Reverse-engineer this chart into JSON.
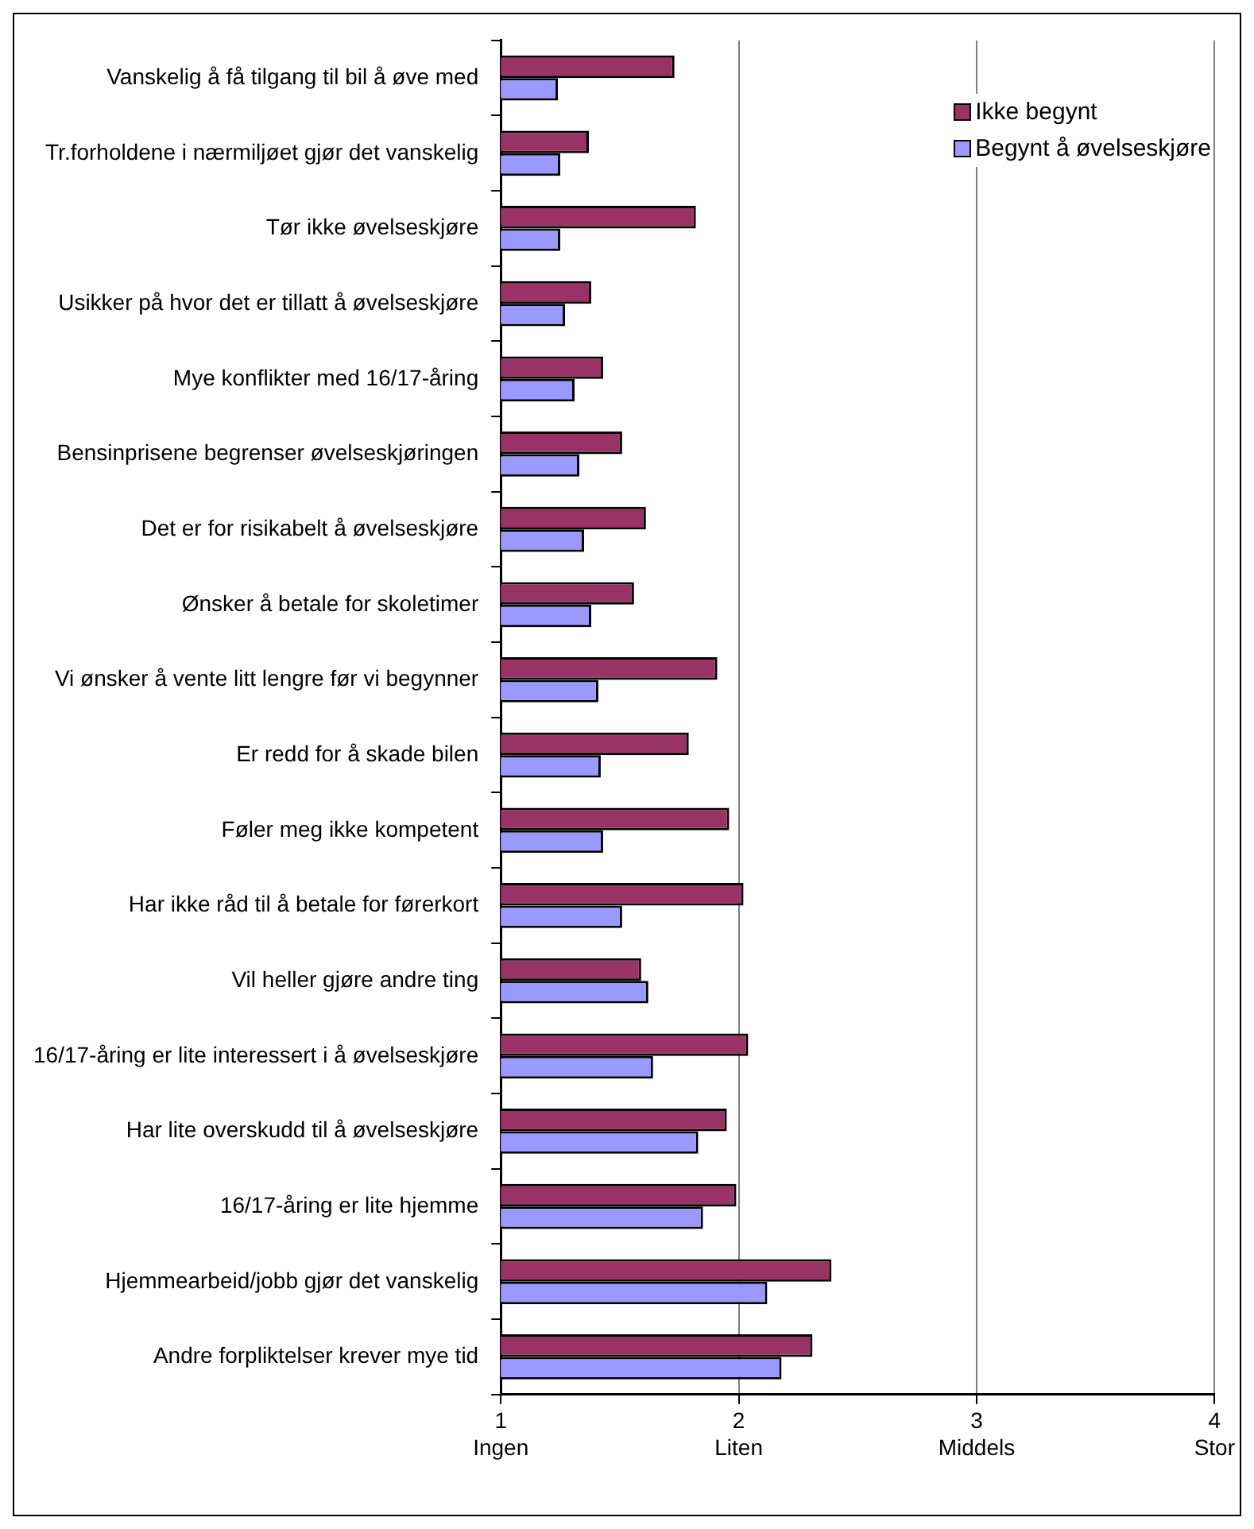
{
  "chart_data": {
    "type": "bar",
    "orientation": "horizontal",
    "categories": [
      "Vanskelig å få tilgang til bil å øve med",
      "Tr.forholdene i nærmiljøet gjør det vanskelig",
      "Tør ikke øvelseskjøre",
      "Usikker på hvor det er tillatt å øvelseskjøre",
      "Mye konflikter med 16/17-åring",
      "Bensinprisene begrenser øvelseskjøringen",
      "Det er for risikabelt å øvelseskjøre",
      "Ønsker å betale for skoletimer",
      "Vi ønsker å vente litt lengre før vi begynner",
      "Er redd for å skade bilen",
      "Føler meg ikke kompetent",
      "Har ikke råd til å betale for førerkort",
      "Vil heller gjøre andre ting",
      "16/17-åring er lite interessert i å øvelseskjøre",
      "Har lite overskudd til å øvelseskjøre",
      "16/17-åring er lite hjemme",
      "Hjemmearbeid/jobb gjør det vanskelig",
      "Andre forpliktelser krever mye tid"
    ],
    "series": [
      {
        "name": "Ikke begynt",
        "color": "#993366",
        "values": [
          1.73,
          1.37,
          1.82,
          1.38,
          1.43,
          1.51,
          1.61,
          1.56,
          1.91,
          1.79,
          1.96,
          2.02,
          1.59,
          2.04,
          1.95,
          1.99,
          2.39,
          2.31
        ]
      },
      {
        "name": "Begynt å øvelseskjøre",
        "color": "#9999ff",
        "values": [
          1.24,
          1.25,
          1.25,
          1.27,
          1.31,
          1.33,
          1.35,
          1.38,
          1.41,
          1.42,
          1.43,
          1.51,
          1.62,
          1.64,
          1.83,
          1.85,
          2.12,
          2.18
        ]
      }
    ],
    "xlim": [
      1,
      4
    ],
    "xticks": [
      {
        "value": 1,
        "label": "1\nIngen"
      },
      {
        "value": 2,
        "label": "2\nLiten"
      },
      {
        "value": 3,
        "label": "3\nMiddels"
      },
      {
        "value": 4,
        "label": "4\nStor"
      }
    ],
    "grid": "x",
    "legend": "top right"
  }
}
